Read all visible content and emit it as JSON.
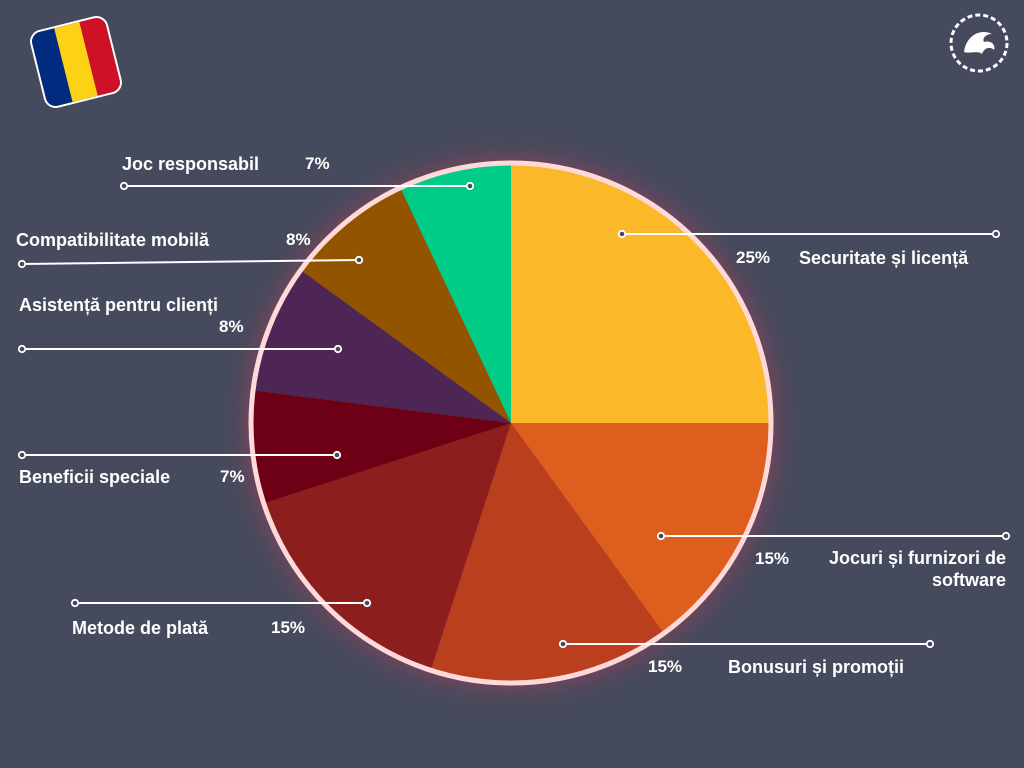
{
  "chart_data": {
    "type": "pie",
    "slices": [
      {
        "label": "Securitate și licență",
        "value": 25,
        "pct_text": "25%",
        "color": "#fbb829"
      },
      {
        "label": "Jocuri și furnizori de software",
        "value": 15,
        "pct_text": "15%",
        "color": "#de5e1e"
      },
      {
        "label": "Bonusuri și promoții",
        "value": 15,
        "pct_text": "15%",
        "color": "#b93f1f"
      },
      {
        "label": "Metode de plată",
        "value": 15,
        "pct_text": "15%",
        "color": "#8c1e1e"
      },
      {
        "label": "Beneficii speciale",
        "value": 7,
        "pct_text": "7%",
        "color": "#6e0016"
      },
      {
        "label": "Asistență pentru clienți",
        "value": 8,
        "pct_text": "8%",
        "color": "#4d2655"
      },
      {
        "label": "Compatibilitate mobilă",
        "value": 8,
        "pct_text": "8%",
        "color": "#935400"
      },
      {
        "label": "Joc responsabil",
        "value": 7,
        "pct_text": "7%",
        "color": "#00cc88"
      }
    ]
  },
  "flag_colors": [
    "#002b7f",
    "#fcd116",
    "#ce1126"
  ],
  "logo_icon": "dragon-icon",
  "background_color": "#464a5d"
}
